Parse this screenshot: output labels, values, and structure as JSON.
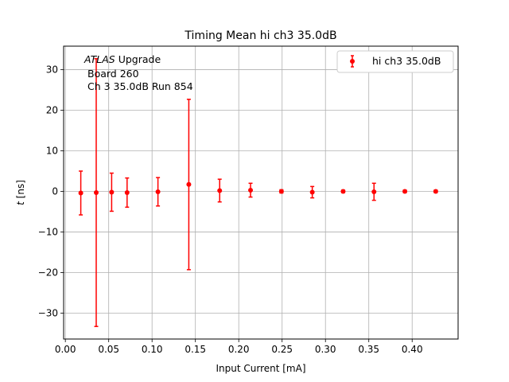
{
  "chart_data": {
    "type": "scatter",
    "title": "Timing Mean hi ch3 35.0dB",
    "xlabel": "Input Current [mA]",
    "ylabel_italic": "t",
    "ylabel_rest": " [ns]",
    "xlim": [
      -0.002,
      0.453
    ],
    "ylim": [
      -36.4,
      35.8
    ],
    "xticks": [
      0.0,
      0.05,
      0.1,
      0.15,
      0.2,
      0.25,
      0.3,
      0.35,
      0.4
    ],
    "xtick_labels": [
      "0.00",
      "0.05",
      "0.10",
      "0.15",
      "0.20",
      "0.25",
      "0.30",
      "0.35",
      "0.40"
    ],
    "yticks": [
      -30,
      -20,
      -10,
      0,
      10,
      20,
      30
    ],
    "ytick_labels": [
      "−30",
      "−20",
      "−10",
      "0",
      "10",
      "20",
      "30"
    ],
    "grid": true,
    "legend_position": "top-right",
    "series": [
      {
        "name": "hi ch3 35.0dB",
        "color": "#ff0000",
        "x": [
          0.0178,
          0.0356,
          0.0534,
          0.0712,
          0.1068,
          0.1424,
          0.178,
          0.2136,
          0.2492,
          0.2848,
          0.3204,
          0.356,
          0.3916,
          0.4272
        ],
        "y": [
          -0.4,
          -0.3,
          -0.2,
          -0.3,
          -0.1,
          1.7,
          0.2,
          0.3,
          0.0,
          -0.2,
          0.0,
          -0.1,
          0.0,
          0.0
        ],
        "yerr": [
          5.4,
          33.0,
          4.7,
          3.6,
          3.5,
          21.0,
          2.8,
          1.7,
          0.4,
          1.4,
          0.3,
          2.1,
          0.3,
          0.3
        ]
      }
    ],
    "annotation": {
      "line1_italic": "ATLAS",
      "line1_rest": " Upgrade",
      "line2": "Board 260",
      "line3": "Ch 3 35.0dB  Run 854"
    }
  }
}
